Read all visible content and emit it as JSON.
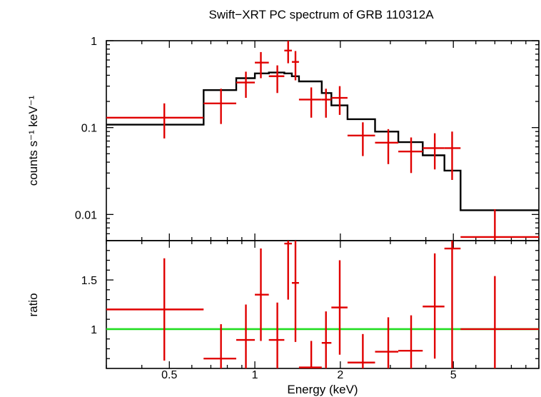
{
  "chart_data": {
    "title": "Swift−XRT PC spectrum of GRB 110312A",
    "xlabel": "Energy (keV)",
    "x_scale": "log",
    "xlim": [
      0.3,
      10
    ],
    "x_ticks": [
      0.5,
      1,
      2,
      5
    ],
    "x_tick_labels": [
      "0.5",
      "1",
      "2",
      "5"
    ],
    "panels": [
      {
        "name": "spectrum",
        "type": "scatter",
        "ylabel": "counts s⁻¹ keV⁻¹",
        "y_scale": "log",
        "ylim": [
          0.005,
          1
        ],
        "y_ticks": [
          0.01,
          0.1,
          1
        ],
        "y_tick_labels": [
          "0.01",
          "0.1",
          "1"
        ],
        "data_color": "#e00000",
        "model_color": "#000000",
        "data": [
          {
            "x": 0.48,
            "xlo": 0.3,
            "xhi": 0.66,
            "y": 0.13,
            "ylo": 0.075,
            "yhi": 0.19
          },
          {
            "x": 0.76,
            "xlo": 0.66,
            "xhi": 0.86,
            "y": 0.19,
            "ylo": 0.11,
            "yhi": 0.28
          },
          {
            "x": 0.93,
            "xlo": 0.86,
            "xhi": 1.0,
            "y": 0.33,
            "ylo": 0.22,
            "yhi": 0.44
          },
          {
            "x": 1.05,
            "xlo": 1.0,
            "xhi": 1.12,
            "y": 0.56,
            "ylo": 0.37,
            "yhi": 0.74
          },
          {
            "x": 1.2,
            "xlo": 1.12,
            "xhi": 1.27,
            "y": 0.39,
            "ylo": 0.25,
            "yhi": 0.52
          },
          {
            "x": 1.31,
            "xlo": 1.27,
            "xhi": 1.35,
            "y": 0.77,
            "ylo": 0.55,
            "yhi": 1.0
          },
          {
            "x": 1.39,
            "xlo": 1.35,
            "xhi": 1.43,
            "y": 0.57,
            "ylo": 0.35,
            "yhi": 0.76
          },
          {
            "x": 1.58,
            "xlo": 1.43,
            "xhi": 1.72,
            "y": 0.21,
            "ylo": 0.13,
            "yhi": 0.29
          },
          {
            "x": 1.78,
            "xlo": 1.72,
            "xhi": 1.86,
            "y": 0.21,
            "ylo": 0.13,
            "yhi": 0.28
          },
          {
            "x": 1.99,
            "xlo": 1.86,
            "xhi": 2.12,
            "y": 0.22,
            "ylo": 0.14,
            "yhi": 0.3
          },
          {
            "x": 2.4,
            "xlo": 2.12,
            "xhi": 2.65,
            "y": 0.081,
            "ylo": 0.047,
            "yhi": 0.115
          },
          {
            "x": 2.95,
            "xlo": 2.65,
            "xhi": 3.2,
            "y": 0.067,
            "ylo": 0.038,
            "yhi": 0.096
          },
          {
            "x": 3.55,
            "xlo": 3.2,
            "xhi": 3.9,
            "y": 0.053,
            "ylo": 0.03,
            "yhi": 0.077
          },
          {
            "x": 4.3,
            "xlo": 3.9,
            "xhi": 4.65,
            "y": 0.058,
            "ylo": 0.033,
            "yhi": 0.086
          },
          {
            "x": 4.95,
            "xlo": 4.65,
            "xhi": 5.3,
            "y": 0.058,
            "ylo": 0.025,
            "yhi": 0.09
          },
          {
            "x": 7.0,
            "xlo": 5.3,
            "xhi": 10.0,
            "y": 0.0055,
            "ylo": 0.005,
            "yhi": 0.0115
          }
        ],
        "model": [
          {
            "xlo": 0.3,
            "xhi": 0.66,
            "y": 0.108
          },
          {
            "xlo": 0.66,
            "xhi": 0.86,
            "y": 0.27
          },
          {
            "xlo": 0.86,
            "xhi": 1.0,
            "y": 0.37
          },
          {
            "xlo": 1.0,
            "xhi": 1.12,
            "y": 0.42
          },
          {
            "xlo": 1.12,
            "xhi": 1.27,
            "y": 0.43
          },
          {
            "xlo": 1.27,
            "xhi": 1.35,
            "y": 0.42
          },
          {
            "xlo": 1.35,
            "xhi": 1.43,
            "y": 0.39
          },
          {
            "xlo": 1.43,
            "xhi": 1.72,
            "y": 0.34
          },
          {
            "xlo": 1.72,
            "xhi": 1.86,
            "y": 0.25
          },
          {
            "xlo": 1.86,
            "xhi": 2.12,
            "y": 0.18
          },
          {
            "xlo": 2.12,
            "xhi": 2.65,
            "y": 0.125
          },
          {
            "xlo": 2.65,
            "xhi": 3.2,
            "y": 0.09
          },
          {
            "xlo": 3.2,
            "xhi": 3.9,
            "y": 0.068
          },
          {
            "xlo": 3.9,
            "xhi": 4.65,
            "y": 0.048
          },
          {
            "xlo": 4.65,
            "xhi": 5.3,
            "y": 0.032
          },
          {
            "xlo": 5.3,
            "xhi": 10.0,
            "y": 0.0112
          }
        ]
      },
      {
        "name": "ratio",
        "type": "scatter",
        "ylabel": "ratio",
        "y_scale": "linear",
        "ylim": [
          0.6,
          1.9
        ],
        "y_ticks": [
          1,
          1.5
        ],
        "y_tick_labels": [
          "1",
          "1.5"
        ],
        "reference_line": 1,
        "reference_color": "#22dd22",
        "data_color": "#e00000",
        "data": [
          {
            "x": 0.48,
            "xlo": 0.3,
            "xhi": 0.66,
            "y": 1.2,
            "ylo": 0.68,
            "yhi": 1.72
          },
          {
            "x": 0.76,
            "xlo": 0.66,
            "xhi": 0.86,
            "y": 0.7,
            "ylo": 0.6,
            "yhi": 1.05
          },
          {
            "x": 0.93,
            "xlo": 0.86,
            "xhi": 1.0,
            "y": 0.89,
            "ylo": 0.6,
            "yhi": 1.25
          },
          {
            "x": 1.05,
            "xlo": 1.0,
            "xhi": 1.12,
            "y": 1.35,
            "ylo": 0.88,
            "yhi": 1.82
          },
          {
            "x": 1.2,
            "xlo": 1.12,
            "xhi": 1.27,
            "y": 0.89,
            "ylo": 0.6,
            "yhi": 1.27
          },
          {
            "x": 1.31,
            "xlo": 1.27,
            "xhi": 1.35,
            "y": 1.87,
            "ylo": 1.3,
            "yhi": 1.9
          },
          {
            "x": 1.39,
            "xlo": 1.35,
            "xhi": 1.43,
            "y": 1.47,
            "ylo": 0.87,
            "yhi": 1.9
          },
          {
            "x": 1.58,
            "xlo": 1.43,
            "xhi": 1.72,
            "y": 0.61,
            "ylo": 0.6,
            "yhi": 0.88
          },
          {
            "x": 1.78,
            "xlo": 1.72,
            "xhi": 1.86,
            "y": 0.86,
            "ylo": 0.6,
            "yhi": 1.18
          },
          {
            "x": 1.99,
            "xlo": 1.86,
            "xhi": 2.12,
            "y": 1.22,
            "ylo": 0.74,
            "yhi": 1.7
          },
          {
            "x": 2.4,
            "xlo": 2.12,
            "xhi": 2.65,
            "y": 0.66,
            "ylo": 0.6,
            "yhi": 0.95
          },
          {
            "x": 2.95,
            "xlo": 2.65,
            "xhi": 3.2,
            "y": 0.77,
            "ylo": 0.6,
            "yhi": 1.12
          },
          {
            "x": 3.55,
            "xlo": 3.2,
            "xhi": 3.9,
            "y": 0.78,
            "ylo": 0.6,
            "yhi": 1.14
          },
          {
            "x": 4.3,
            "xlo": 3.9,
            "xhi": 4.65,
            "y": 1.23,
            "ylo": 0.7,
            "yhi": 1.77
          },
          {
            "x": 4.95,
            "xlo": 4.65,
            "xhi": 5.3,
            "y": 1.82,
            "ylo": 0.6,
            "yhi": 1.9
          },
          {
            "x": 7.0,
            "xlo": 5.3,
            "xhi": 10.0,
            "y": 1.0,
            "ylo": 0.6,
            "yhi": 1.54
          }
        ]
      }
    ]
  }
}
